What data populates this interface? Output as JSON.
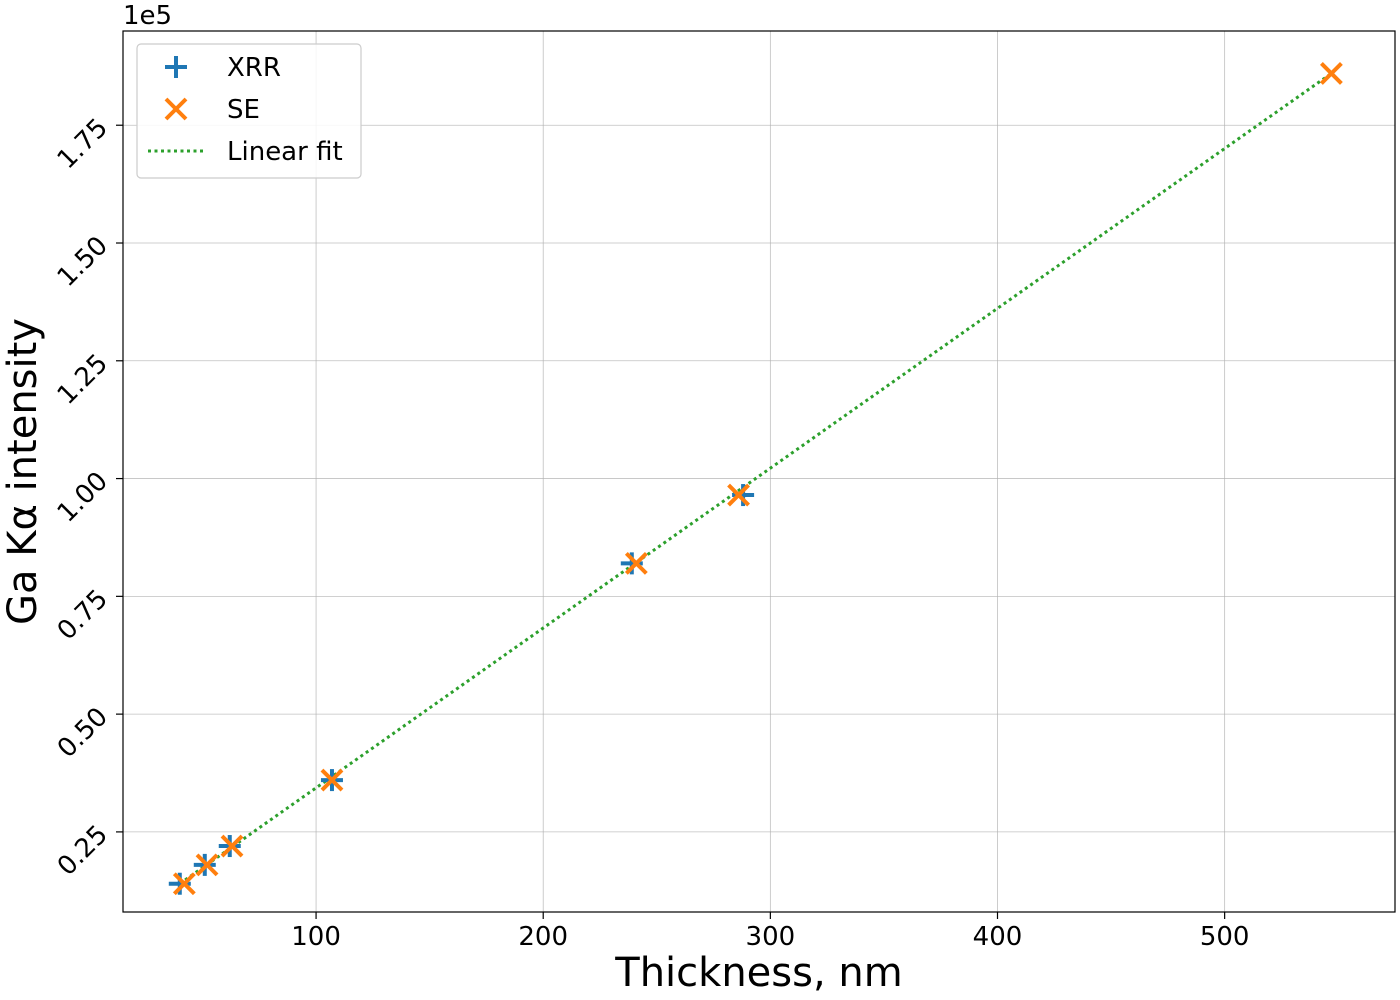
{
  "chart_data": {
    "type": "scatter",
    "xlabel": "Thickness, nm",
    "ylabel": "Ga Kα intensity",
    "y_offset_label": "1e5",
    "y_scale_factor": 100000,
    "xlim": [
      15,
      575
    ],
    "ylim": [
      0.08,
      1.95
    ],
    "xticks": [
      100,
      200,
      300,
      400,
      500
    ],
    "xtick_labels": [
      "100",
      "200",
      "300",
      "400",
      "500"
    ],
    "yticks": [
      0.25,
      0.5,
      0.75,
      1.0,
      1.25,
      1.5,
      1.75
    ],
    "ytick_labels": [
      "0.25",
      "0.50",
      "0.75",
      "1.00",
      "1.25",
      "1.50",
      "1.75"
    ],
    "grid": true,
    "legend_position": "top-left",
    "series": [
      {
        "name": "XRR",
        "marker": "plus",
        "color": "#1f77b4",
        "x": [
          40,
          51,
          62,
          107,
          239,
          288
        ],
        "y": [
          0.14,
          0.18,
          0.22,
          0.36,
          0.82,
          0.965
        ]
      },
      {
        "name": "SE",
        "marker": "x",
        "color": "#ff7f0e",
        "x": [
          42,
          52,
          63,
          107,
          241,
          286,
          547
        ],
        "y": [
          0.14,
          0.18,
          0.22,
          0.36,
          0.82,
          0.965,
          1.86
        ]
      },
      {
        "name": "Linear fit",
        "style": "dotted-line",
        "color": "#2ca02c",
        "x": [
          40,
          547
        ],
        "y": [
          0.14,
          1.86
        ]
      }
    ]
  }
}
